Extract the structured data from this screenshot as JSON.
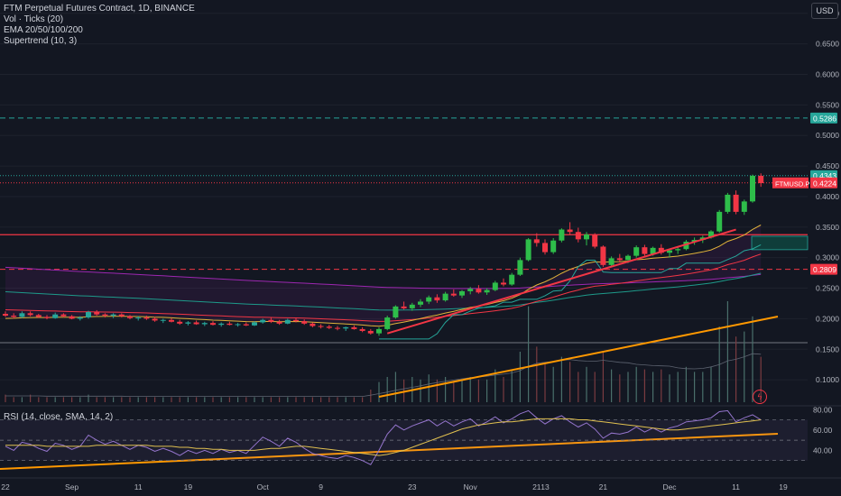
{
  "legend": {
    "title": "FTM Perpetual Futures Contract, 1D, BINANCE",
    "vol": "Vol · Ticks (20)",
    "ema": "EMA 20/50/100/200",
    "supertrend": "Supertrend (10, 3)"
  },
  "rsi_legend": "RSI (14, close, SMA, 14, 2)",
  "currency_button": "USD",
  "colors": {
    "background": "#131722",
    "up": "#26a69a",
    "up_bright": "#2ebd4a",
    "down": "#f23645",
    "ema20": "#e0b23a",
    "ema50": "#f23645",
    "ema100": "#1e9a8a",
    "ema200": "#9c27b0",
    "trendline": "#ff9800",
    "rsi": "#9575cd"
  },
  "chart_data": {
    "type": "candlestick",
    "price_axis_ticks": [
      "0.7000",
      "0.6500",
      "0.6000",
      "0.5500",
      "0.5000",
      "0.4500",
      "0.4000",
      "0.3500",
      "0.3000",
      "0.2500",
      "0.2000",
      "0.1500",
      "0.1000"
    ],
    "price_range": [
      0.05,
      0.71
    ],
    "x_ticks": [
      "22",
      "Sep",
      "11",
      "19",
      "Oct",
      "9",
      "23",
      "Nov",
      "21",
      "13",
      "21",
      "Dec",
      "11",
      "19"
    ],
    "rsi_ticks": [
      "80.00",
      "60.00",
      "40.00"
    ],
    "rsi_range": [
      20,
      82
    ],
    "price_labels": [
      {
        "text": "0.5286",
        "value": 0.5286,
        "color": "#26a69a"
      },
      {
        "text": "0.4343",
        "value": 0.4343,
        "color": "#26a69a"
      },
      {
        "text": "0.4224",
        "value": 0.4224,
        "color": "#f23645"
      },
      {
        "text": "0.2809",
        "value": 0.2809,
        "color": "#f23645"
      }
    ],
    "symbol_label": {
      "text": "FTMUSD.P",
      "value": 0.4224
    },
    "horizontal_levels": [
      {
        "value": 0.5286,
        "color": "#26a69a",
        "style": "dashed"
      },
      {
        "value": 0.4343,
        "color": "#26a69a",
        "style": "dotted"
      },
      {
        "value": 0.4224,
        "color": "#f23645",
        "style": "dotted"
      },
      {
        "value": 0.3375,
        "color": "#f23645",
        "style": "solid"
      },
      {
        "value": 0.2809,
        "color": "#f23645",
        "style": "dashed"
      }
    ],
    "candles": [
      [
        0.208,
        0.212,
        0.203,
        0.205
      ],
      [
        0.205,
        0.209,
        0.2,
        0.203
      ],
      [
        0.203,
        0.212,
        0.201,
        0.209
      ],
      [
        0.209,
        0.212,
        0.204,
        0.206
      ],
      [
        0.206,
        0.208,
        0.201,
        0.203
      ],
      [
        0.203,
        0.206,
        0.199,
        0.201
      ],
      [
        0.201,
        0.21,
        0.2,
        0.207
      ],
      [
        0.207,
        0.209,
        0.202,
        0.204
      ],
      [
        0.204,
        0.206,
        0.199,
        0.2
      ],
      [
        0.2,
        0.204,
        0.197,
        0.202
      ],
      [
        0.202,
        0.213,
        0.2,
        0.211
      ],
      [
        0.211,
        0.214,
        0.205,
        0.207
      ],
      [
        0.207,
        0.209,
        0.202,
        0.205
      ],
      [
        0.205,
        0.209,
        0.201,
        0.207
      ],
      [
        0.207,
        0.209,
        0.202,
        0.204
      ],
      [
        0.204,
        0.206,
        0.199,
        0.201
      ],
      [
        0.201,
        0.204,
        0.197,
        0.202
      ],
      [
        0.202,
        0.205,
        0.198,
        0.2
      ],
      [
        0.2,
        0.203,
        0.195,
        0.197
      ],
      [
        0.197,
        0.2,
        0.193,
        0.198
      ],
      [
        0.198,
        0.201,
        0.194,
        0.195
      ],
      [
        0.195,
        0.198,
        0.19,
        0.192
      ],
      [
        0.192,
        0.196,
        0.189,
        0.194
      ],
      [
        0.194,
        0.197,
        0.19,
        0.191
      ],
      [
        0.191,
        0.195,
        0.188,
        0.193
      ],
      [
        0.193,
        0.196,
        0.189,
        0.19
      ],
      [
        0.19,
        0.194,
        0.187,
        0.192
      ],
      [
        0.192,
        0.195,
        0.189,
        0.19
      ],
      [
        0.19,
        0.193,
        0.187,
        0.191
      ],
      [
        0.191,
        0.194,
        0.188,
        0.189
      ],
      [
        0.189,
        0.196,
        0.188,
        0.194
      ],
      [
        0.194,
        0.2,
        0.192,
        0.198
      ],
      [
        0.198,
        0.202,
        0.193,
        0.195
      ],
      [
        0.195,
        0.198,
        0.19,
        0.192
      ],
      [
        0.192,
        0.2,
        0.191,
        0.198
      ],
      [
        0.198,
        0.201,
        0.194,
        0.196
      ],
      [
        0.196,
        0.199,
        0.19,
        0.192
      ],
      [
        0.192,
        0.194,
        0.186,
        0.188
      ],
      [
        0.188,
        0.191,
        0.184,
        0.187
      ],
      [
        0.187,
        0.19,
        0.183,
        0.185
      ],
      [
        0.185,
        0.188,
        0.181,
        0.184
      ],
      [
        0.184,
        0.187,
        0.18,
        0.186
      ],
      [
        0.186,
        0.189,
        0.182,
        0.183
      ],
      [
        0.183,
        0.186,
        0.178,
        0.18
      ],
      [
        0.18,
        0.183,
        0.174,
        0.176
      ],
      [
        0.176,
        0.186,
        0.172,
        0.183
      ],
      [
        0.183,
        0.205,
        0.181,
        0.202
      ],
      [
        0.202,
        0.222,
        0.2,
        0.22
      ],
      [
        0.22,
        0.228,
        0.215,
        0.217
      ],
      [
        0.217,
        0.226,
        0.213,
        0.223
      ],
      [
        0.223,
        0.232,
        0.219,
        0.228
      ],
      [
        0.228,
        0.238,
        0.224,
        0.235
      ],
      [
        0.235,
        0.24,
        0.226,
        0.23
      ],
      [
        0.23,
        0.244,
        0.228,
        0.241
      ],
      [
        0.241,
        0.248,
        0.236,
        0.238
      ],
      [
        0.238,
        0.247,
        0.234,
        0.245
      ],
      [
        0.245,
        0.252,
        0.24,
        0.249
      ],
      [
        0.249,
        0.255,
        0.241,
        0.243
      ],
      [
        0.243,
        0.25,
        0.239,
        0.247
      ],
      [
        0.247,
        0.262,
        0.245,
        0.259
      ],
      [
        0.259,
        0.266,
        0.253,
        0.256
      ],
      [
        0.256,
        0.275,
        0.254,
        0.272
      ],
      [
        0.272,
        0.3,
        0.27,
        0.296
      ],
      [
        0.296,
        0.332,
        0.294,
        0.33
      ],
      [
        0.33,
        0.34,
        0.318,
        0.324
      ],
      [
        0.324,
        0.33,
        0.305,
        0.309
      ],
      [
        0.309,
        0.332,
        0.306,
        0.328
      ],
      [
        0.328,
        0.348,
        0.325,
        0.346
      ],
      [
        0.346,
        0.358,
        0.338,
        0.342
      ],
      [
        0.342,
        0.349,
        0.325,
        0.33
      ],
      [
        0.33,
        0.342,
        0.32,
        0.338
      ],
      [
        0.338,
        0.34,
        0.315,
        0.318
      ],
      [
        0.318,
        0.32,
        0.285,
        0.288
      ],
      [
        0.288,
        0.302,
        0.284,
        0.299
      ],
      [
        0.299,
        0.306,
        0.292,
        0.296
      ],
      [
        0.296,
        0.305,
        0.291,
        0.303
      ],
      [
        0.303,
        0.32,
        0.3,
        0.317
      ],
      [
        0.317,
        0.321,
        0.303,
        0.306
      ],
      [
        0.306,
        0.318,
        0.303,
        0.316
      ],
      [
        0.316,
        0.322,
        0.305,
        0.308
      ],
      [
        0.308,
        0.315,
        0.3,
        0.312
      ],
      [
        0.312,
        0.318,
        0.306,
        0.314
      ],
      [
        0.314,
        0.329,
        0.312,
        0.326
      ],
      [
        0.326,
        0.333,
        0.321,
        0.329
      ],
      [
        0.329,
        0.336,
        0.324,
        0.333
      ],
      [
        0.333,
        0.345,
        0.331,
        0.343
      ],
      [
        0.343,
        0.378,
        0.341,
        0.375
      ],
      [
        0.375,
        0.406,
        0.372,
        0.403
      ],
      [
        0.403,
        0.41,
        0.371,
        0.375
      ],
      [
        0.375,
        0.395,
        0.37,
        0.392
      ],
      [
        0.392,
        0.436,
        0.39,
        0.434
      ],
      [
        0.434,
        0.438,
        0.416,
        0.422
      ]
    ],
    "volume": [
      3,
      2,
      2,
      3,
      2,
      2,
      2,
      2,
      2,
      2,
      3,
      2,
      2,
      2,
      2,
      2,
      2,
      2,
      2,
      2,
      2,
      2,
      2,
      2,
      2,
      2,
      2,
      2,
      2,
      2,
      2,
      2,
      2,
      2,
      2,
      2,
      2,
      2,
      2,
      2,
      2,
      2,
      2,
      2,
      5,
      8,
      10,
      12,
      9,
      10,
      9,
      11,
      9,
      10,
      8,
      9,
      10,
      9,
      9,
      13,
      10,
      13,
      20,
      38,
      22,
      15,
      14,
      18,
      16,
      12,
      14,
      12,
      20,
      13,
      11,
      12,
      14,
      13,
      12,
      13,
      11,
      12,
      14,
      12,
      12,
      14,
      30,
      40,
      26,
      28,
      34,
      18
    ],
    "volume_ma": [
      2.5,
      2.5,
      2.5,
      2.5,
      2.5,
      2.4,
      2.4,
      2.4,
      2.4,
      2.4,
      2.4,
      2.4,
      2.4,
      2.4,
      2.4,
      2.3,
      2.3,
      2.3,
      2.3,
      2.3,
      2.3,
      2.3,
      2.3,
      2.3,
      2.3,
      2.3,
      2.3,
      2.3,
      2.3,
      2.3,
      2.3,
      2.3,
      2.3,
      2.3,
      2.3,
      2.3,
      2.3,
      2.3,
      2.3,
      2.3,
      2.3,
      2.3,
      2.3,
      2.3,
      2.8,
      3.4,
      4.0,
      4.7,
      5.3,
      5.9,
      6.5,
      7.2,
      7.8,
      8.3,
      8.8,
      9.3,
      9.7,
      10.0,
      10.3,
      10.8,
      11.1,
      11.6,
      12.5,
      14.3,
      15.4,
      15.8,
      16.1,
      16.6,
      16.9,
      16.5,
      16.3,
      16.2,
      16.6,
      16.2,
      15.8,
      15.6,
      15.0,
      14.8,
      14.5,
      14.4,
      14.3,
      13.6,
      13.3,
      13.2,
      13.4,
      14.0,
      14.9,
      16.4,
      17.0,
      18.0,
      19.2,
      19.0
    ],
    "rsi": [
      44,
      40,
      48,
      46,
      42,
      39,
      47,
      45,
      41,
      44,
      55,
      50,
      46,
      49,
      45,
      41,
      45,
      43,
      39,
      42,
      39,
      35,
      40,
      37,
      40,
      37,
      41,
      38,
      40,
      37,
      45,
      53,
      49,
      44,
      52,
      48,
      42,
      37,
      35,
      33,
      32,
      35,
      33,
      30,
      26,
      40,
      56,
      65,
      60,
      64,
      67,
      70,
      64,
      69,
      64,
      68,
      71,
      64,
      68,
      73,
      67,
      71,
      76,
      79,
      72,
      66,
      71,
      74,
      68,
      63,
      67,
      61,
      52,
      57,
      56,
      58,
      63,
      58,
      62,
      58,
      62,
      64,
      68,
      69,
      70,
      72,
      78,
      79,
      68,
      72,
      75,
      70
    ],
    "rsi_ma": [
      45,
      45,
      45,
      45,
      45,
      44,
      44,
      44,
      44,
      44,
      44,
      45,
      45,
      45,
      45,
      45,
      45,
      45,
      44,
      44,
      44,
      43,
      43,
      42,
      42,
      41,
      41,
      40,
      40,
      40,
      40,
      41,
      42,
      42,
      43,
      44,
      44,
      43,
      42,
      41,
      40,
      39,
      38,
      37,
      36,
      35,
      36,
      38,
      40,
      43,
      46,
      49,
      52,
      55,
      58,
      61,
      63,
      65,
      66,
      67,
      68,
      68,
      69,
      70,
      71,
      71,
      71,
      71,
      71,
      70,
      70,
      69,
      68,
      67,
      66,
      65,
      64,
      63,
      62,
      61,
      60,
      60,
      61,
      62,
      63,
      64,
      65,
      66,
      67,
      68,
      69,
      70
    ]
  }
}
